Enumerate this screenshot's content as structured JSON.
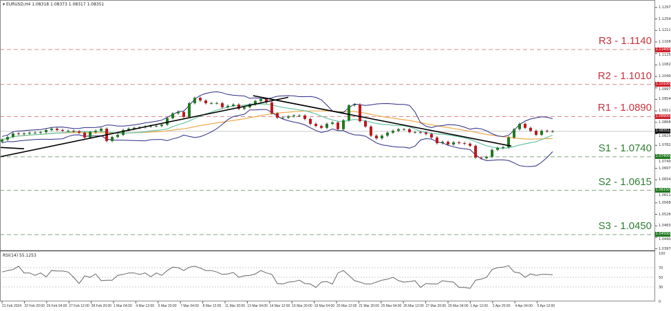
{
  "header": {
    "symbol": "EURUSD,H4",
    "ohlc": "1.08318 1.08373 1.08317 1.08351"
  },
  "rsi_label": "RSI(14) 55.1253",
  "colors": {
    "bull": "#1f7a1f",
    "bear": "#c0171b",
    "bands": "#2a2a86",
    "ma_fast": "#66c2a0",
    "ma_slow": "#f0a848",
    "resistance": "#c8323a",
    "support": "#2f7d32",
    "trendline": "#000000"
  },
  "chart_data": {
    "type": "candlestick",
    "ylim": [
      1.0394,
      1.1318
    ],
    "closes": [
      1.0804,
      1.0814,
      1.0827,
      1.0825,
      1.0827,
      1.083,
      1.083,
      1.0832,
      1.084,
      1.0845,
      1.084,
      1.0837,
      1.0837,
      1.0835,
      1.083,
      1.0812,
      1.0832,
      1.0837,
      1.0845,
      1.0799,
      1.0814,
      1.0822,
      1.084,
      1.0845,
      1.0848,
      1.085,
      1.0853,
      1.0855,
      1.0855,
      1.086,
      1.0884,
      1.0902,
      1.0907,
      1.0889,
      1.094,
      1.096,
      1.095,
      1.094,
      1.094,
      1.094,
      1.0925,
      1.093,
      1.0935,
      1.0919,
      1.0925,
      1.0935,
      1.0948,
      1.0955,
      1.0943,
      1.0902,
      1.0886,
      1.0886,
      1.0891,
      1.0894,
      1.0894,
      1.0881,
      1.0863,
      1.0855,
      1.0848,
      1.0863,
      1.0868,
      1.0843,
      1.0876,
      1.0932,
      1.0935,
      1.0873,
      1.0853,
      1.0819,
      1.0809,
      1.0819,
      1.083,
      1.0837,
      1.0843,
      1.0843,
      1.0832,
      1.0832,
      1.083,
      1.0825,
      1.0812,
      1.0791,
      1.0796,
      1.0786,
      1.0794,
      1.0791,
      1.0789,
      1.0781,
      1.0737,
      1.0735,
      1.074,
      1.0766,
      1.0773,
      1.0776,
      1.0812,
      1.0843,
      1.0863,
      1.0848,
      1.0837,
      1.0822,
      1.0837,
      1.0835,
      1.08351
    ],
    "current_price": {
      "value": 1.08351,
      "label": "1.08351"
    },
    "levels": [
      {
        "name": "R3",
        "value": 1.114,
        "text": "R3 - 1.1140",
        "badge": "1.11400",
        "kind": "resistance"
      },
      {
        "name": "R2",
        "value": 1.101,
        "text": "R2 - 1.1010",
        "badge": "1.10100",
        "kind": "resistance"
      },
      {
        "name": "R1",
        "value": 1.089,
        "text": "R1 - 1.0890",
        "badge": "1.08900",
        "kind": "resistance"
      },
      {
        "name": "S1",
        "value": 1.074,
        "text": "S1 - 1.0740",
        "badge": "1.07400",
        "kind": "support"
      },
      {
        "name": "S2",
        "value": 1.0615,
        "text": "S2 - 1.0615",
        "badge": "1.06150",
        "kind": "support"
      },
      {
        "name": "S3",
        "value": 1.045,
        "text": "S3 - 1.0450",
        "badge": "1.04500",
        "kind": "support"
      }
    ],
    "trendlines": [
      {
        "from": [
          -0.4,
          1.074
        ],
        "to": [
          52,
          1.0962
        ]
      },
      {
        "from": [
          45.6,
          1.0968
        ],
        "to": [
          92.5,
          1.078
        ]
      },
      {
        "from": [
          -0.4,
          1.0775
        ],
        "to": [
          4,
          1.077
        ]
      }
    ],
    "y_ticks": [
      "1.12970",
      "1.12540",
      "1.12110",
      "1.11680",
      "1.11250",
      "1.10820",
      "1.10400",
      "1.09970",
      "1.09540",
      "1.09110",
      "1.08680",
      "1.08250",
      "1.07820",
      "1.07400",
      "1.06970",
      "1.06540",
      "1.06110",
      "1.05680",
      "1.05260",
      "1.04830",
      "1.04400",
      "1.03970"
    ],
    "x_ticks": [
      "21 Feb 2024",
      "22 Feb 20:00",
      "26 Feb 04:00",
      "27 Feb 12:00",
      "28 Feb 20:00",
      "1 Mar 04:00",
      "4 Mar 12:00",
      "5 Mar 20:00",
      "7 Mar 04:00",
      "8 Mar 12:00",
      "11 Mar 20:00",
      "13 Mar 04:00",
      "14 Mar 12:00",
      "15 Mar 20:00",
      "19 Mar 04:00",
      "20 Mar 12:00",
      "21 Mar 20:00",
      "25 Mar 04:00",
      "26 Mar 12:00",
      "27 Mar 20:00",
      "29 Mar 04:00",
      "1 Apr 12:00",
      "2 Apr 20:00",
      "4 Apr 04:00",
      "5 Apr 12:00"
    ],
    "rsi": {
      "period": 14,
      "ylim": [
        0,
        100
      ],
      "levels": [
        70,
        50,
        30
      ],
      "y_ticks": [
        "100",
        "70",
        "50",
        "30",
        "0"
      ],
      "values": [
        61,
        64,
        66,
        73,
        59,
        59,
        54,
        59,
        51,
        64,
        63,
        63,
        61,
        50,
        37,
        53,
        50,
        57,
        43,
        44,
        44,
        54,
        56,
        59,
        59,
        56,
        59,
        51,
        59,
        54,
        64,
        71,
        70,
        64,
        71,
        73,
        69,
        64,
        64,
        61,
        56,
        57,
        60,
        50,
        53,
        54,
        57,
        64,
        59,
        56,
        37,
        36,
        40,
        41,
        44,
        37,
        36,
        29,
        40,
        41,
        36,
        59,
        64,
        54,
        43,
        40,
        36,
        36,
        40,
        44,
        46,
        50,
        43,
        40,
        41,
        43,
        29,
        37,
        36,
        36,
        43,
        41,
        40,
        29,
        29,
        27,
        44,
        46,
        50,
        66,
        70,
        71,
        74,
        61,
        59,
        50,
        57,
        54,
        56,
        56,
        55.1253
      ]
    }
  }
}
